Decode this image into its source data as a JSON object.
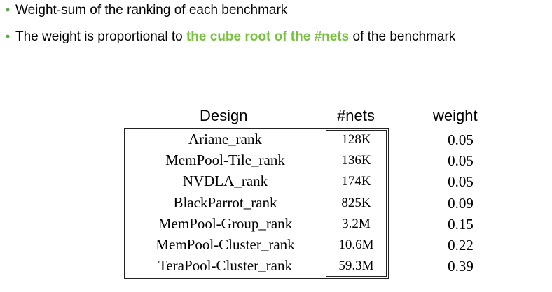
{
  "bullets": [
    {
      "text": "Weight-sum of the ranking of each benchmark"
    },
    {
      "prefix": "The weight is proportional to ",
      "highlight": "the cube root of the #nets",
      "suffix": " of the benchmark"
    }
  ],
  "colors": {
    "highlight": "#79c141",
    "bullet": "#5aa64a"
  },
  "table": {
    "headers": {
      "design": "Design",
      "nets": "#nets",
      "weight": "weight"
    },
    "rows": [
      {
        "design": "Ariane_rank",
        "nets": "128K",
        "weight": "0.05"
      },
      {
        "design": "MemPool-Tile_rank",
        "nets": "136K",
        "weight": "0.05"
      },
      {
        "design": "NVDLA_rank",
        "nets": "174K",
        "weight": "0.05"
      },
      {
        "design": "BlackParrot_rank",
        "nets": "825K",
        "weight": "0.09"
      },
      {
        "design": "MemPool-Group_rank",
        "nets": "3.2M",
        "weight": "0.15"
      },
      {
        "design": "MemPool-Cluster_rank",
        "nets": "10.6M",
        "weight": "0.22"
      },
      {
        "design": "TeraPool-Cluster_rank",
        "nets": "59.3M",
        "weight": "0.39"
      }
    ]
  }
}
